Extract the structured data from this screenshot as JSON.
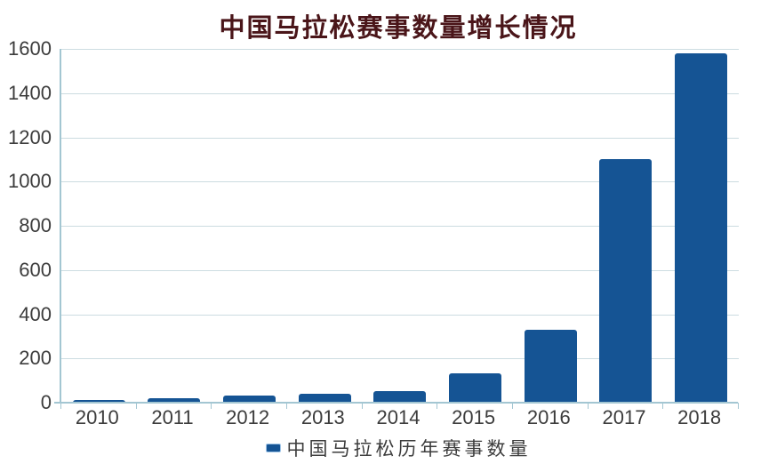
{
  "title": "中国马拉松赛事数量增长情况",
  "legend": {
    "label": "中国马拉松历年赛事数量"
  },
  "colors": {
    "bar": "#155494",
    "grid": "#ccdce1",
    "axis": "#a3c6d2",
    "label": "#3c3c3c",
    "title": "#4a1519",
    "legend_marker_border": "#9dc3e6",
    "background": "#ffffff"
  },
  "chart_data": {
    "type": "bar",
    "title": "中国马拉松赛事数量增长情况",
    "categories": [
      "2010",
      "2011",
      "2012",
      "2013",
      "2014",
      "2015",
      "2016",
      "2017",
      "2018"
    ],
    "values": [
      13,
      22,
      33,
      39,
      51,
      134,
      328,
      1102,
      1581
    ],
    "series_name": "中国马拉松历年赛事数量",
    "xlabel": "",
    "ylabel": "",
    "ylim": [
      0,
      1600
    ],
    "yticks": [
      0,
      200,
      400,
      600,
      800,
      1000,
      1200,
      1400,
      1600
    ],
    "grid": true,
    "legend_position": "bottom"
  }
}
